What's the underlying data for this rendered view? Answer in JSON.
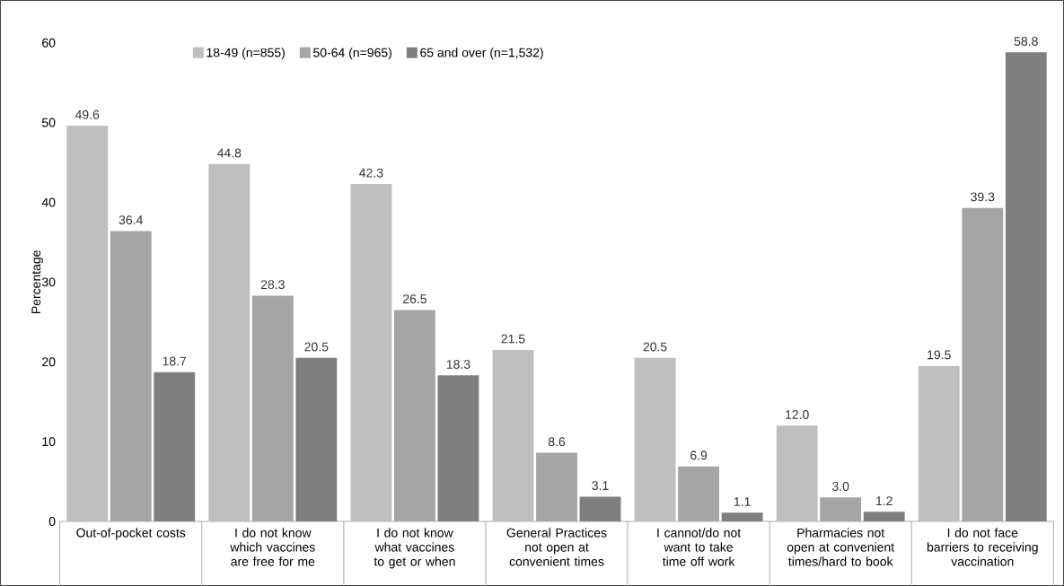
{
  "chart_data": {
    "type": "bar",
    "ylabel": "Percentage",
    "categories": [
      "Out-of-pocket costs",
      "I do not know which vaccines are free for me",
      "I do not know what vaccines to get or when",
      "General Practices not open at convenient times",
      "I cannot/do not want to take time off work",
      "Pharmacies not open at convenient times/hard to book",
      "I do not face barriers to receiving vaccination"
    ],
    "series": [
      {
        "name": "18-49 (n=855)",
        "color": "#bfbfbf",
        "values": [
          49.6,
          44.8,
          42.3,
          21.5,
          20.5,
          12.0,
          19.5
        ],
        "value_labels": [
          "49.6",
          "44.8",
          "42.3",
          "21.5",
          "20.5",
          "12.0",
          "19.5"
        ]
      },
      {
        "name": "50-64 (n=965)",
        "color": "#a5a5a5",
        "values": [
          36.4,
          28.3,
          26.5,
          8.6,
          6.9,
          3.0,
          39.3
        ],
        "value_labels": [
          "36.4",
          "28.3",
          "26.5",
          "8.6",
          "6.9",
          "3.0",
          "39.3"
        ]
      },
      {
        "name": "65 and over (n=1,532)",
        "color": "#7f7f7f",
        "values": [
          18.7,
          20.5,
          18.3,
          3.1,
          1.1,
          1.2,
          58.8
        ],
        "value_labels": [
          "18.7",
          "20.5",
          "18.3",
          "3.1",
          "1.1",
          "1.2",
          "58.8"
        ]
      }
    ],
    "ylim": [
      0,
      60
    ],
    "yticks": [
      0,
      10,
      20,
      30,
      40,
      50,
      60
    ],
    "grid": false,
    "legend": "top"
  }
}
